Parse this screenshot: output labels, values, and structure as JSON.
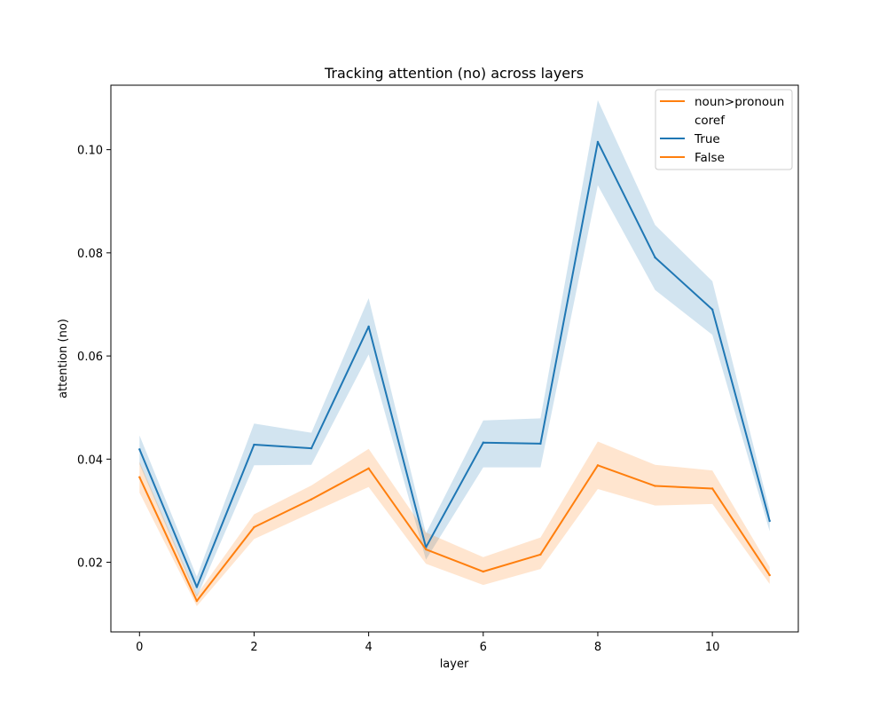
{
  "chart_data": {
    "type": "line",
    "title": "Tracking attention (no) across layers",
    "xlabel": "layer",
    "ylabel": "attention (no)",
    "xlim": [
      -0.5,
      11.5
    ],
    "ylim": [
      0.0065,
      0.1125
    ],
    "xticks": [
      0,
      2,
      4,
      6,
      8,
      10
    ],
    "xtick_labels": [
      "0",
      "2",
      "4",
      "6",
      "8",
      "10"
    ],
    "yticks": [
      0.02,
      0.04,
      0.06,
      0.08,
      0.1
    ],
    "ytick_labels": [
      "0.02",
      "0.04",
      "0.06",
      "0.08",
      "0.10"
    ],
    "grid": false,
    "legend_position": "top-right",
    "legend_entries": [
      {
        "label": "noun>pronoun",
        "color": "#ff7f0e",
        "has_line": true
      },
      {
        "label": "coref",
        "color": "",
        "has_line": false
      },
      {
        "label": "True",
        "color": "#1f77b4",
        "has_line": true
      },
      {
        "label": "False",
        "color": "#ff7f0e",
        "has_line": true
      }
    ],
    "x": [
      0,
      1,
      2,
      3,
      4,
      5,
      6,
      7,
      8,
      9,
      10,
      11
    ],
    "series": [
      {
        "name": "True",
        "color": "#1f77b4",
        "values": [
          0.0419,
          0.0152,
          0.0428,
          0.0421,
          0.0657,
          0.0229,
          0.0432,
          0.043,
          0.1015,
          0.0791,
          0.069,
          0.028
        ],
        "ci_low": [
          0.039,
          0.0132,
          0.0388,
          0.0389,
          0.0603,
          0.0205,
          0.0384,
          0.0384,
          0.0931,
          0.0728,
          0.0641,
          0.026
        ],
        "ci_high": [
          0.0446,
          0.0172,
          0.0469,
          0.0451,
          0.0712,
          0.0256,
          0.0475,
          0.0479,
          0.1096,
          0.0854,
          0.0745,
          0.03
        ]
      },
      {
        "name": "False",
        "color": "#ff7f0e",
        "values": [
          0.0365,
          0.0125,
          0.0268,
          0.0322,
          0.0382,
          0.0225,
          0.0182,
          0.0215,
          0.0388,
          0.0348,
          0.0343,
          0.0175
        ],
        "ci_low": [
          0.0335,
          0.0115,
          0.0245,
          0.0296,
          0.0346,
          0.0197,
          0.0156,
          0.0187,
          0.0342,
          0.031,
          0.0313,
          0.0158
        ],
        "ci_high": [
          0.0395,
          0.0137,
          0.0293,
          0.0349,
          0.042,
          0.0258,
          0.021,
          0.0248,
          0.0434,
          0.0389,
          0.0378,
          0.0191
        ]
      }
    ]
  }
}
